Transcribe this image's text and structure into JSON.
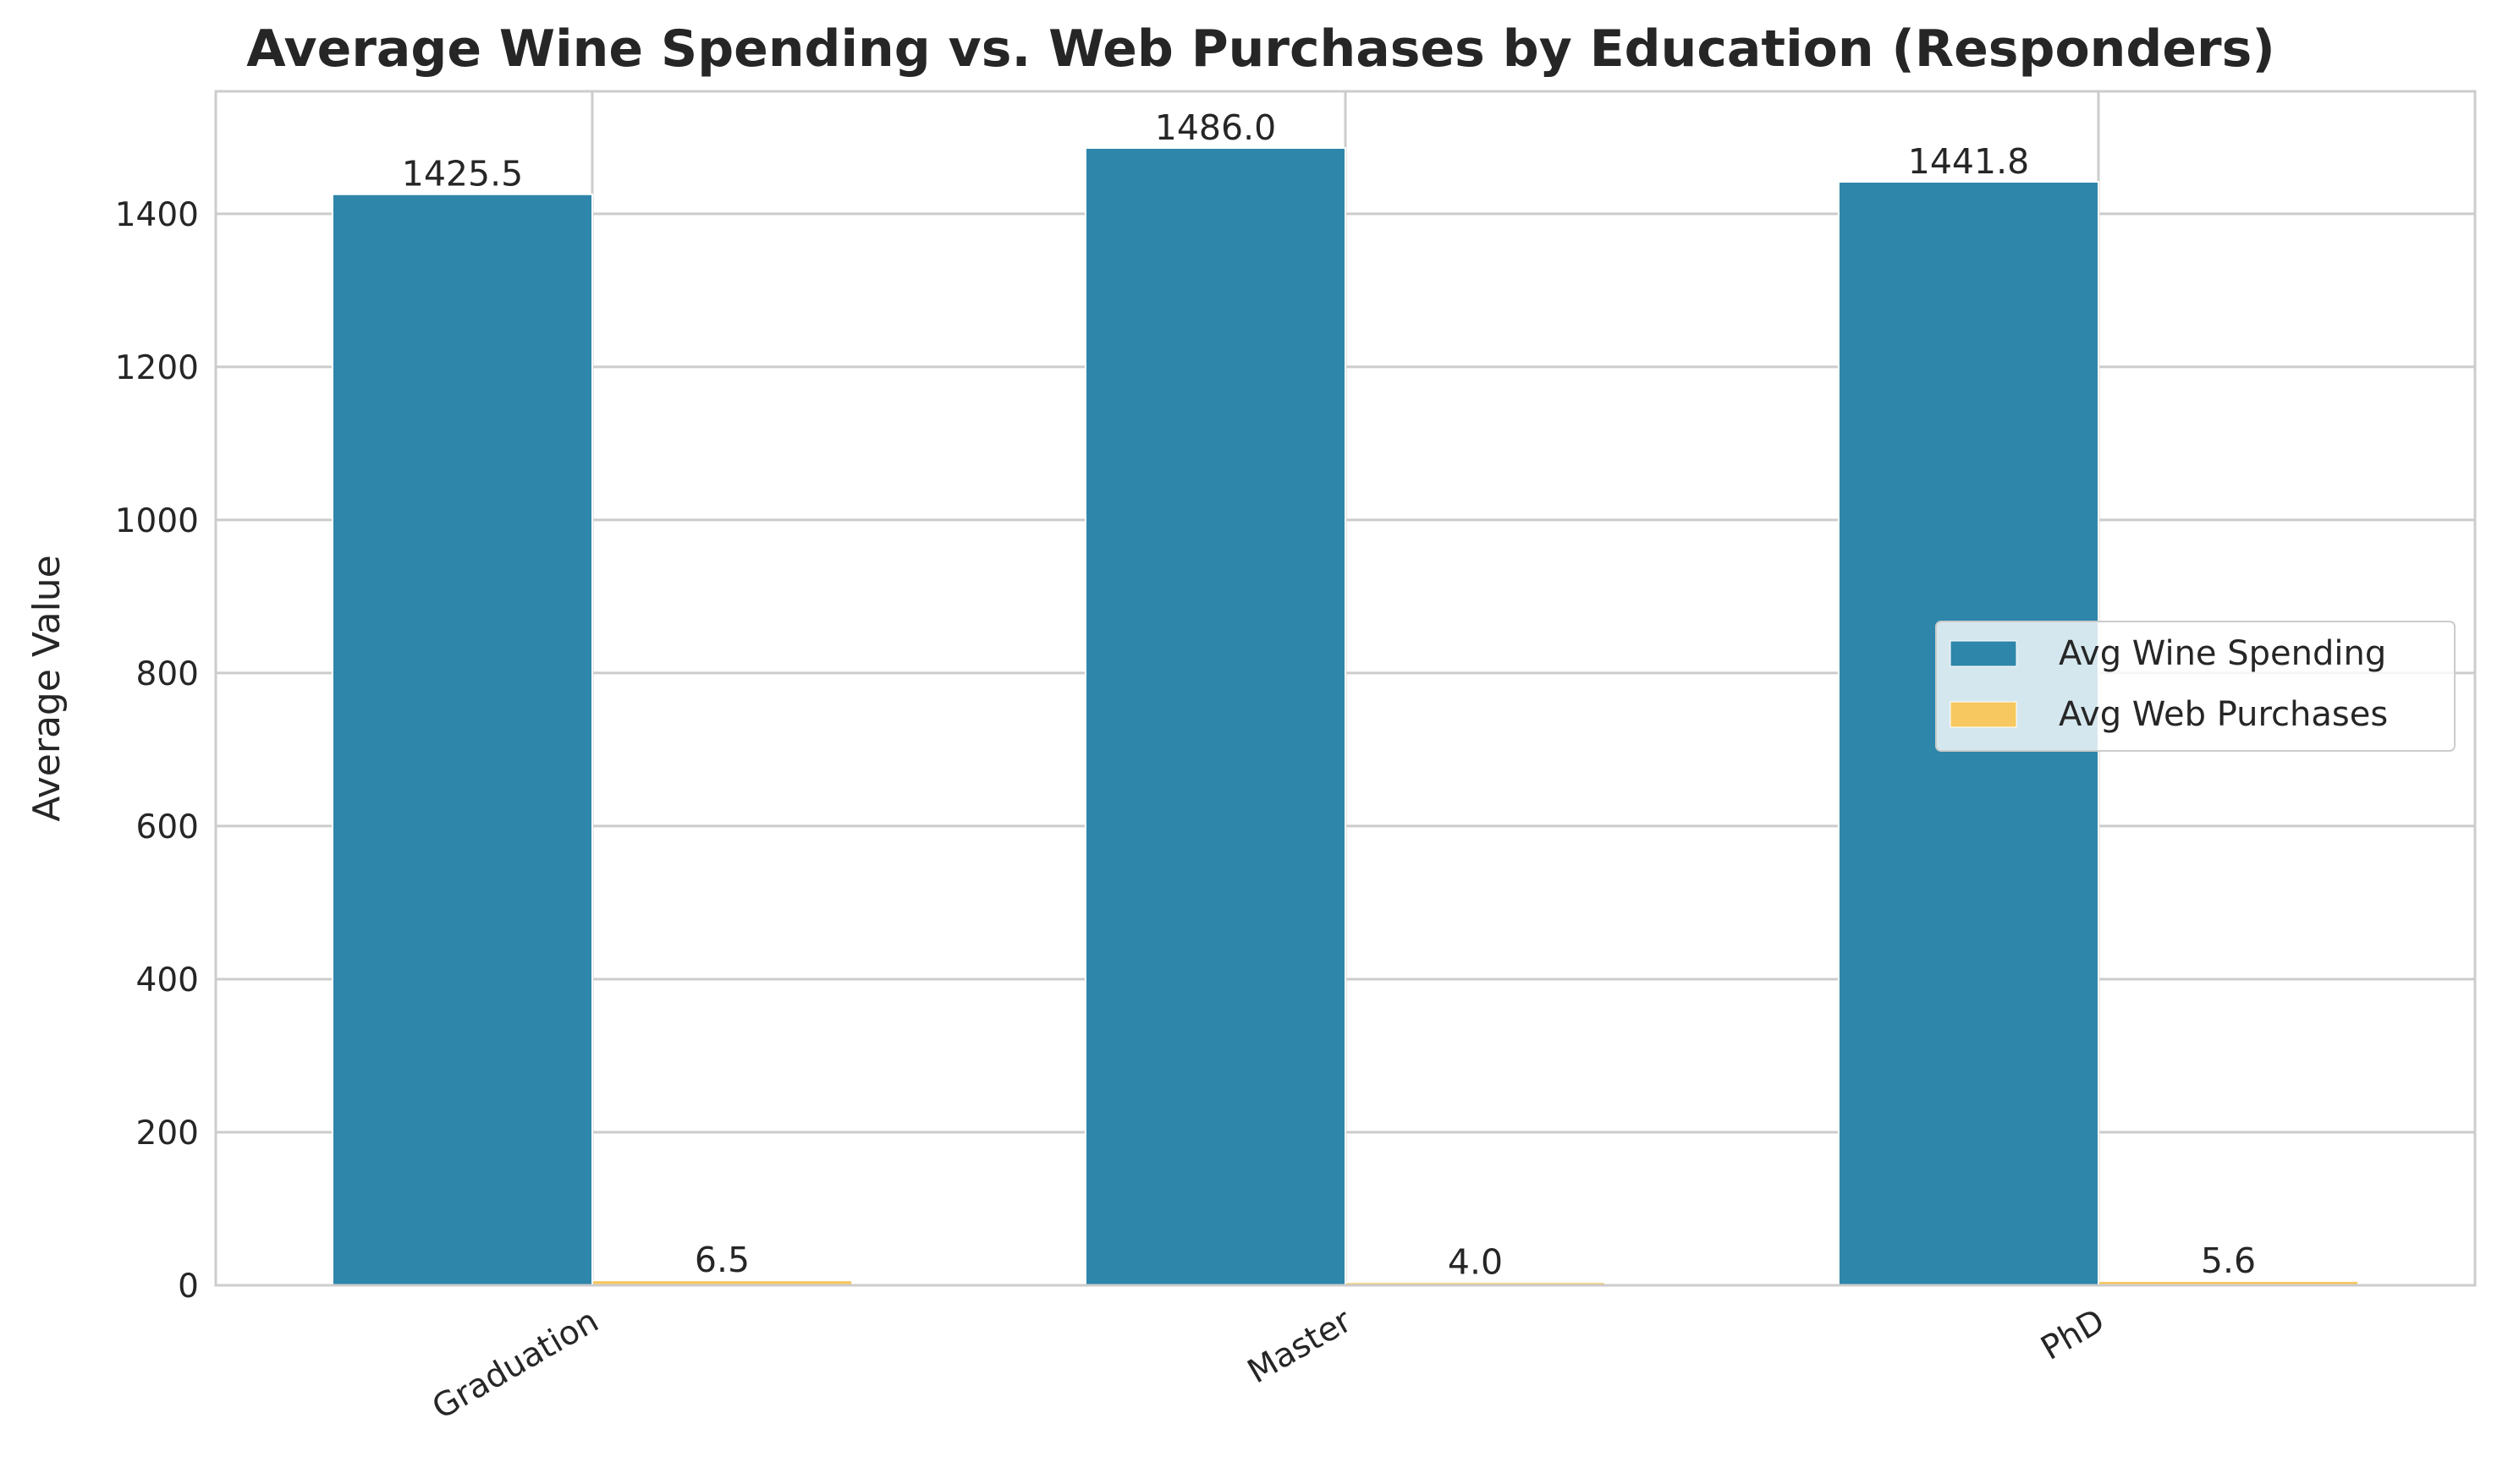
{
  "chart_data": {
    "type": "bar",
    "title": "Average Wine Spending vs. Web Purchases by Education (Responders)",
    "xlabel": "",
    "ylabel": "Average Value",
    "categories": [
      "Graduation",
      "Master",
      "PhD"
    ],
    "series": [
      {
        "name": "Avg Wine Spending",
        "values": [
          1425.5,
          1486.0,
          1441.8
        ],
        "labels": [
          "1425.5",
          "1486.0",
          "1441.8"
        ],
        "color": "#2e86ab"
      },
      {
        "name": "Avg Web Purchases",
        "values": [
          6.5,
          4.0,
          5.6
        ],
        "labels": [
          "6.5",
          "4.0",
          "5.6"
        ],
        "color": "#f6c85f"
      }
    ],
    "ylim": [
      0,
      1560
    ],
    "yticks": [
      0,
      200,
      400,
      600,
      800,
      1000,
      1200,
      1400
    ],
    "ytick_labels": [
      "0",
      "200",
      "400",
      "600",
      "800",
      "1000",
      "1200",
      "1400"
    ],
    "grid": true,
    "legend_position": "center-right",
    "colors": {
      "grid": "#cccccc",
      "frame": "#cccccc",
      "text": "#262626"
    }
  }
}
